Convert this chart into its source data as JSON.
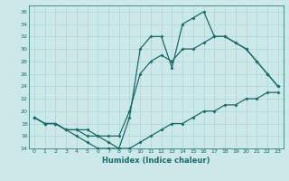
{
  "xlabel": "Humidex (Indice chaleur)",
  "xlim": [
    -0.5,
    23.5
  ],
  "ylim": [
    14,
    37
  ],
  "yticks": [
    14,
    16,
    18,
    20,
    22,
    24,
    26,
    28,
    30,
    32,
    34,
    36
  ],
  "xticks": [
    0,
    1,
    2,
    3,
    4,
    5,
    6,
    7,
    8,
    9,
    10,
    11,
    12,
    13,
    14,
    15,
    16,
    17,
    18,
    19,
    20,
    21,
    22,
    23
  ],
  "bg_color": "#cce8e8",
  "grid_color": "#aad4d4",
  "line_color": "#1a6b6b",
  "line1_x": [
    0,
    1,
    2,
    3,
    4,
    5,
    6,
    7,
    8,
    9,
    10,
    11,
    12,
    13,
    14,
    15,
    16,
    17,
    18,
    19,
    20,
    21,
    22,
    23
  ],
  "line1_y": [
    19,
    18,
    18,
    17,
    16,
    15,
    14,
    14,
    14,
    14,
    15,
    16,
    17,
    18,
    18,
    19,
    20,
    20,
    21,
    21,
    22,
    22,
    23,
    23
  ],
  "line2_x": [
    0,
    1,
    2,
    3,
    4,
    5,
    6,
    7,
    8,
    9,
    10,
    11,
    12,
    13,
    14,
    15,
    16,
    17,
    18,
    19,
    20,
    21,
    22,
    23
  ],
  "line2_y": [
    19,
    18,
    18,
    17,
    17,
    16,
    16,
    15,
    14,
    19,
    30,
    32,
    32,
    27,
    34,
    35,
    36,
    32,
    32,
    31,
    30,
    28,
    26,
    24
  ],
  "line3_x": [
    0,
    1,
    2,
    3,
    4,
    5,
    6,
    7,
    8,
    9,
    10,
    11,
    12,
    13,
    14,
    15,
    16,
    17,
    18,
    19,
    20,
    21,
    22,
    23
  ],
  "line3_y": [
    19,
    18,
    18,
    17,
    17,
    17,
    16,
    16,
    16,
    20,
    26,
    28,
    29,
    28,
    30,
    30,
    31,
    32,
    32,
    31,
    30,
    28,
    26,
    24
  ]
}
